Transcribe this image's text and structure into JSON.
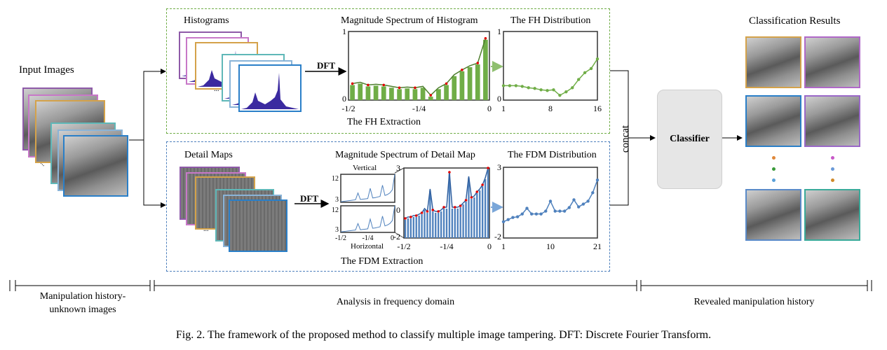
{
  "input": {
    "label": "Input Images",
    "frame_colors": [
      "#8e5aa8",
      "#c878c8",
      "#d4a24a",
      "#5fb8b8",
      "#8ab4d8",
      "#2a7fc8"
    ]
  },
  "fh": {
    "histograms_label": "Histograms",
    "dft_label": "DFT",
    "spectrum_title": "Magnitude Spectrum of  Histogram",
    "distribution_title": "The FH Distribution",
    "extraction_label": "The FH  Extraction",
    "ellipsis": "..."
  },
  "fdm": {
    "detail_maps_label": "Detail Maps",
    "dft_label": "DFT",
    "spectrum_title": "Magnitude Spectrum of  Detail Map",
    "vertical_label": "Vertical",
    "horizontal_label": "Horizontal",
    "distribution_title": "The FDM Distribution",
    "extraction_label": "The FDM  Extraction",
    "ellipsis": "..."
  },
  "concat_label": "concat",
  "classifier_label": "Classifier",
  "results": {
    "title": "Classification Results",
    "frame_colors": [
      "#d4a24a",
      "#b068c8",
      "#2a7fc8",
      "#9a68c8",
      "#5a8ac8",
      "#3aaa9a"
    ],
    "dot_colors": [
      [
        "#e0883a",
        "#3a9a3a",
        "#5aa0d8"
      ],
      [
        "#c858c8",
        "#6a9ad8",
        "#d08a2a"
      ]
    ]
  },
  "stages": [
    {
      "label": "Manipulation history-\nunknown images"
    },
    {
      "label": "Analysis in frequency domain"
    },
    {
      "label": "Revealed manipulation history"
    }
  ],
  "caption": "Fig. 2. The framework of the proposed method to classify multiple image tampering. DFT: Discrete Fourier Transform.",
  "colors": {
    "green": "#70ad47",
    "green_dark": "#4f7f2f",
    "blue": "#4f81bd",
    "red": "#e00000"
  },
  "chart_data": [
    {
      "id": "fh-spectrum",
      "type": "bar",
      "xlim": [
        -0.5,
        0
      ],
      "ylim": [
        0,
        1
      ],
      "xticks": [
        "-1/2",
        "-1/4",
        "0"
      ],
      "yticks": [
        "0",
        "1"
      ],
      "values": [
        0.22,
        0.24,
        0.2,
        0.21,
        0.2,
        0.18,
        0.16,
        0.17,
        0.16,
        0.18,
        0.05,
        0.16,
        0.22,
        0.35,
        0.42,
        0.48,
        0.52,
        0.88
      ]
    },
    {
      "id": "fh-distribution",
      "type": "line",
      "xlim": [
        1,
        16
      ],
      "ylim": [
        0,
        1
      ],
      "xticks": [
        "1",
        "8",
        "16"
      ],
      "yticks": [
        "0",
        "1"
      ],
      "values": [
        0.21,
        0.21,
        0.21,
        0.2,
        0.18,
        0.17,
        0.15,
        0.14,
        0.15,
        0.07,
        0.12,
        0.18,
        0.3,
        0.4,
        0.46,
        0.6
      ]
    },
    {
      "id": "fdm-vertical",
      "type": "line",
      "xlim": [
        -0.5,
        0
      ],
      "ylim": [
        3,
        12
      ],
      "xticks": [],
      "yticks": [
        "3",
        "12"
      ],
      "title": "Vertical",
      "values": [
        3.2,
        3.3,
        3.4,
        3.5,
        3.6,
        3.7,
        3.8,
        6,
        3.9,
        4,
        4.1,
        4.2,
        7.5,
        4.4,
        4.5,
        4.7,
        4.9,
        8.5,
        5.2,
        5.5,
        6,
        7,
        12
      ]
    },
    {
      "id": "fdm-horizontal",
      "type": "line",
      "xlim": [
        -0.5,
        0
      ],
      "ylim": [
        3,
        12
      ],
      "xticks": [
        "-1/2",
        "-1/4",
        "0"
      ],
      "yticks": [
        "3",
        "12"
      ],
      "title": "Horizontal",
      "values": [
        3.2,
        3.3,
        3.4,
        3.5,
        3.6,
        3.7,
        3.8,
        6,
        3.9,
        4,
        4.1,
        4.2,
        7.5,
        4.4,
        4.5,
        4.7,
        4.9,
        8.5,
        5.2,
        5.5,
        6,
        7,
        12
      ]
    },
    {
      "id": "fdm-spectrum",
      "type": "bar",
      "xlim": [
        -0.5,
        0
      ],
      "ylim": [
        -2,
        3
      ],
      "xticks": [
        "-1/2",
        "-1/4",
        "0"
      ],
      "yticks": [
        "3",
        "0",
        "-2"
      ],
      "values": [
        -0.7,
        -0.6,
        -0.6,
        -0.5,
        -0.5,
        -0.4,
        -0.3,
        0,
        -0.2,
        1.4,
        -0.1,
        -0.2,
        -0.2,
        -0.1,
        0.1,
        0.1,
        2.6,
        0.1,
        0.1,
        0.1,
        0.2,
        0.4,
        0.6,
        2.3,
        0.8,
        0.9,
        1.2,
        1.4,
        1.7,
        2.2,
        2.9
      ]
    },
    {
      "id": "fdm-distribution",
      "type": "line",
      "xlim": [
        1,
        21
      ],
      "ylim": [
        -2,
        3
      ],
      "xticks": [
        "1",
        "10",
        "21"
      ],
      "yticks": [
        "3",
        "-2"
      ],
      "values": [
        -0.85,
        -0.7,
        -0.55,
        -0.5,
        -0.3,
        0.1,
        -0.3,
        -0.3,
        -0.3,
        -0.1,
        0.6,
        -0.1,
        -0.1,
        -0.1,
        0.15,
        0.7,
        0.2,
        0.4,
        0.6,
        1.2,
        2.1
      ]
    }
  ]
}
